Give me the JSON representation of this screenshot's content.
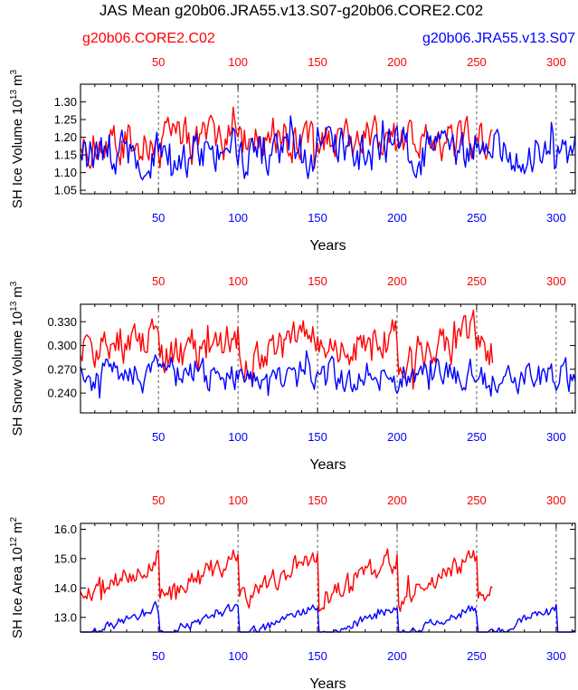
{
  "title": "JAS Mean g20b06.JRA55.v13.S07-g20b06.CORE2.C02",
  "legend": {
    "red": {
      "label": "g20b06.CORE2.C02",
      "color": "#ff0000"
    },
    "blue": {
      "label": "g20b06.JRA55.v13.S07",
      "color": "#0000ff"
    }
  },
  "chart_data": [
    {
      "type": "line",
      "ylabel": "SH Ice Volume 10^13 m^3",
      "ylabel_main": "SH Ice Volume 10",
      "ylabel_exp": "13",
      "ylabel_unit": "m",
      "ylabel_unit_exp": "3",
      "xlabel": "Years",
      "ylim": [
        1.04,
        1.35
      ],
      "yticks": [
        "1.05",
        "1.10",
        "1.15",
        "1.20",
        "1.25",
        "1.30"
      ],
      "xlim": [
        1,
        312
      ],
      "xticks_bottom": [
        "50",
        "100",
        "150",
        "200",
        "250",
        "300"
      ],
      "xticks_top": [
        "50",
        "100",
        "150",
        "200",
        "250",
        "300"
      ],
      "series": [
        {
          "name": "g20b06.CORE2.C02",
          "color": "#ff0000",
          "n": 260,
          "base": 1.19,
          "amp": 0.05,
          "lo": 1.05,
          "hi": 1.34,
          "cycle": 0,
          "seed": 3
        },
        {
          "name": "g20b06.JRA55.v13.S07",
          "color": "#0000ff",
          "n": 312,
          "base": 1.16,
          "amp": 0.055,
          "lo": 1.04,
          "hi": 1.26,
          "cycle": 0,
          "seed": 7
        }
      ]
    },
    {
      "type": "line",
      "ylabel": "SH Snow Volume 10^13 m^3",
      "ylabel_main": "SH Snow Volume 10",
      "ylabel_exp": "13",
      "ylabel_unit": "m",
      "ylabel_unit_exp": "3",
      "xlabel": "Years",
      "ylim": [
        0.215,
        0.352
      ],
      "yticks": [
        "0.240",
        "0.270",
        "0.300",
        "0.330"
      ],
      "xlim": [
        1,
        312
      ],
      "xticks_bottom": [
        "50",
        "100",
        "150",
        "200",
        "250",
        "300"
      ],
      "xticks_top": [
        "50",
        "100",
        "150",
        "200",
        "250",
        "300"
      ],
      "series": [
        {
          "name": "g20b06.CORE2.C02",
          "color": "#ff0000",
          "n": 260,
          "base": 0.295,
          "amp": 0.022,
          "lo": 0.245,
          "hi": 0.348,
          "cycle": 0.025,
          "seed": 11
        },
        {
          "name": "g20b06.JRA55.v13.S07",
          "color": "#0000ff",
          "n": 312,
          "base": 0.262,
          "amp": 0.018,
          "lo": 0.222,
          "hi": 0.3,
          "cycle": 0,
          "seed": 19
        }
      ]
    },
    {
      "type": "line",
      "ylabel": "SH Ice Area 10^12 m^2",
      "ylabel_main": "SH Ice Area 10",
      "ylabel_exp": "12",
      "ylabel_unit": "m",
      "ylabel_unit_exp": "2",
      "xlabel": "Years",
      "ylim": [
        12.5,
        16.2
      ],
      "yticks": [
        "13.0",
        "14.0",
        "15.0",
        "16.0"
      ],
      "xlim": [
        1,
        312
      ],
      "xticks_bottom": [
        "50",
        "100",
        "150",
        "200",
        "250",
        "300"
      ],
      "xticks_top": [
        "50",
        "100",
        "150",
        "200",
        "250",
        "300"
      ],
      "series": [
        {
          "name": "g20b06.CORE2.C02",
          "color": "#ff0000",
          "n": 260,
          "base": 14.2,
          "amp": 0.35,
          "lo": 13.2,
          "hi": 16.1,
          "cycle": 1.6,
          "seed": 23
        },
        {
          "name": "g20b06.JRA55.v13.S07",
          "color": "#0000ff",
          "n": 312,
          "base": 12.75,
          "amp": 0.15,
          "lo": 12.5,
          "hi": 14.2,
          "cycle": 1.1,
          "seed": 29
        }
      ]
    }
  ]
}
